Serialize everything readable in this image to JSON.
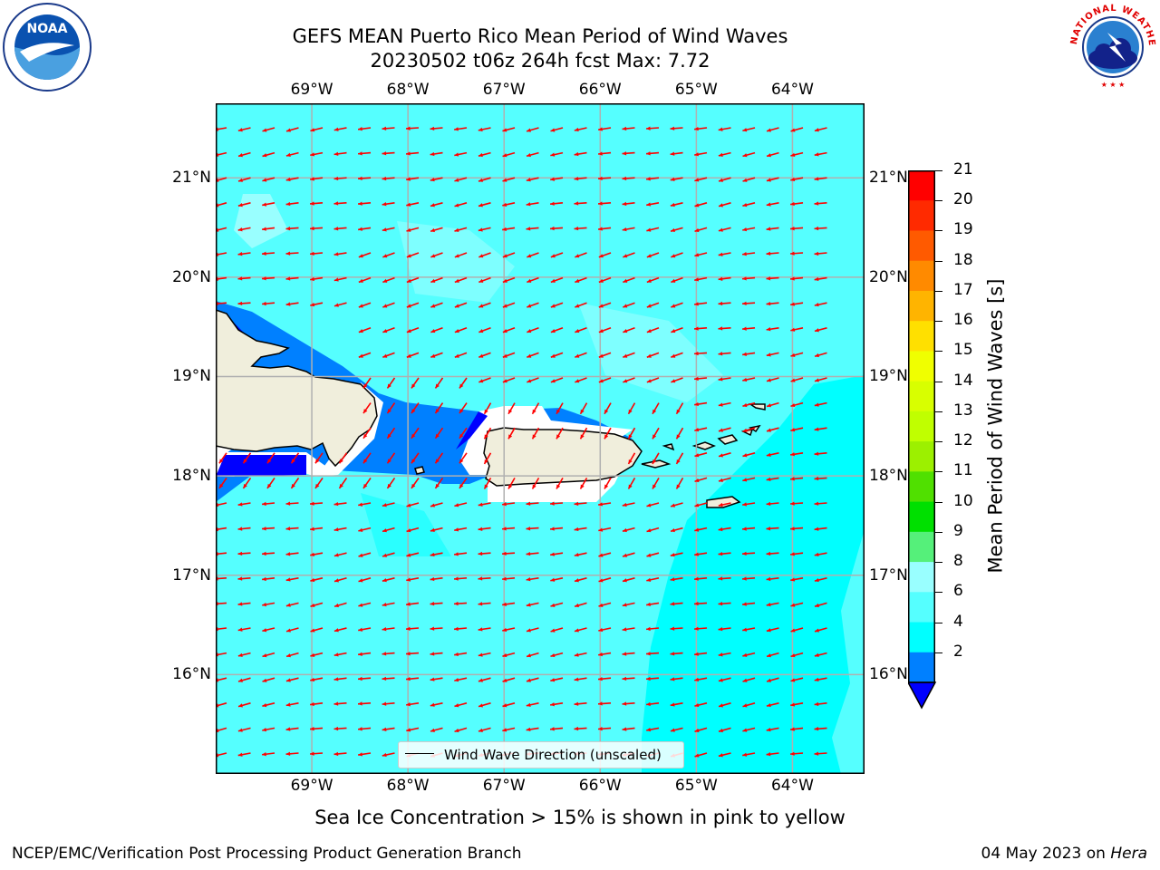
{
  "title_line1": "GEFS MEAN Puerto Rico Mean Period of Wind Waves",
  "title_line2": "20230502 t06z 264h fcst   Max: 7.72",
  "logos": {
    "left": {
      "name": "noaa-logo",
      "text": "NOAA"
    },
    "right": {
      "name": "nws-logo",
      "text": "NATIONAL WEATHER SERVICE"
    }
  },
  "map": {
    "lon_labels": [
      "69°W",
      "68°W",
      "67°W",
      "66°W",
      "65°W",
      "64°W"
    ],
    "lat_labels": [
      "21°N",
      "20°N",
      "19°N",
      "18°N",
      "17°N",
      "16°N"
    ],
    "lon_range": [
      -70.0,
      -63.25
    ],
    "lat_range": [
      15.0,
      21.75
    ],
    "colors": {
      "ocean_light": "#00ffff",
      "ocean_mid": "#55ffff",
      "ocean_lighter": "#99ffff",
      "shallow": "#0080ff",
      "deep": "#0000ff",
      "land": "#f0eedc",
      "arrow": "#ff0000",
      "grid": "#b0b0b0"
    }
  },
  "legend": {
    "text": "Wind Wave Direction (unscaled)"
  },
  "colorbar": {
    "label": "Mean Period of Wind Waves [s]",
    "ticks": [
      "21",
      "20",
      "19",
      "18",
      "17",
      "16",
      "15",
      "14",
      "13",
      "12",
      "11",
      "10",
      "9",
      "8",
      "6",
      "4",
      "2"
    ],
    "colors": [
      "#ff0000",
      "#ff2a00",
      "#ff5a00",
      "#ff8a00",
      "#ffb400",
      "#ffe000",
      "#f0ff00",
      "#d8ff00",
      "#c0ff00",
      "#9cf000",
      "#50e000",
      "#00e000",
      "#55f07a",
      "#99ffff",
      "#55ffff",
      "#00ffff",
      "#0080ff"
    ],
    "extend_color": "#0000ff"
  },
  "caption": "Sea Ice Concentration > 15% is shown in pink to yellow",
  "footer": {
    "left": "NCEP/EMC/Verification Post Processing Product Generation Branch",
    "right_prefix": "04 May 2023 on ",
    "right_host": "Hera"
  }
}
